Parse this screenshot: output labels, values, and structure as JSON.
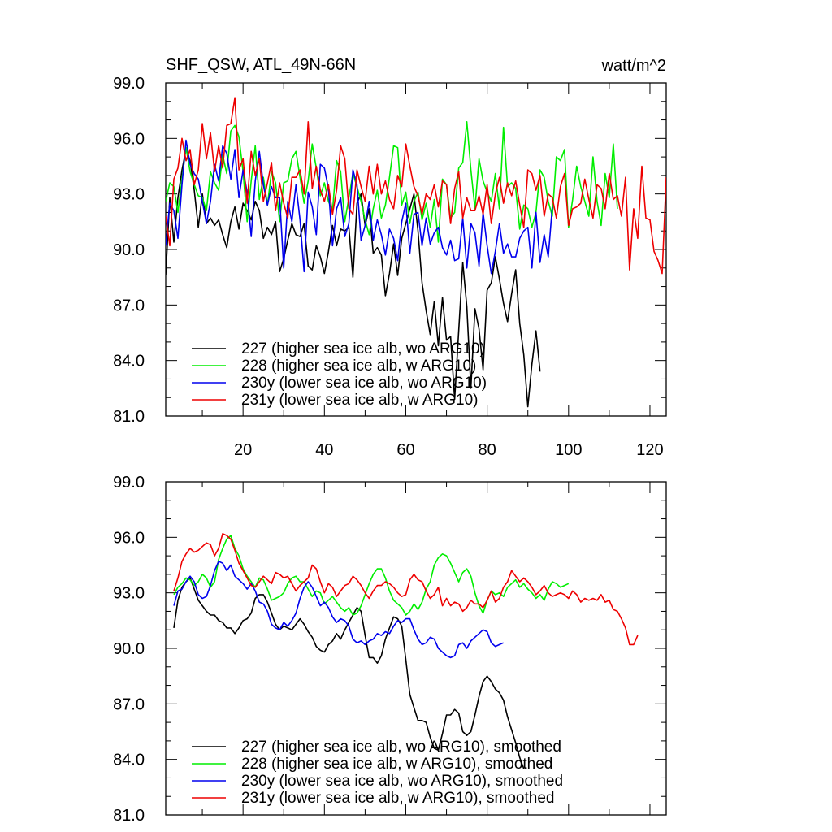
{
  "figure": {
    "title_left": "SHF_QSW, ATL_49N-66N",
    "title_right": "watt/m^2"
  },
  "colors": {
    "227": "#000000",
    "228": "#00ee00",
    "230y": "#0000ee",
    "231y": "#ee0000"
  },
  "chart_data": [
    {
      "type": "line",
      "title": "SHF_QSW, ATL_49N-66N",
      "units": "watt/m^2",
      "xlim": [
        1,
        124
      ],
      "ylim": [
        81.0,
        99.0
      ],
      "xticks": [
        20,
        40,
        60,
        80,
        100,
        120
      ],
      "yticks": [
        "81.0",
        "84.0",
        "87.0",
        "90.0",
        "93.0",
        "96.0",
        "99.0"
      ],
      "legend_position": "bottom-left",
      "series": [
        {
          "name": "227 (higher sea ice alb, wo ARG10)",
          "key": "227",
          "values": [
            88.6,
            92.8,
            90.4,
            92.8,
            94.3,
            95.4,
            94.8,
            93.2,
            91.2,
            93.0,
            91.4,
            91.7,
            91.3,
            91.6,
            90.8,
            90.1,
            91.5,
            92.3,
            91.1,
            92.5,
            92.1,
            91.6,
            92.6,
            92.1,
            90.6,
            91.2,
            90.8,
            91.5,
            88.8,
            89.5,
            90.5,
            91.4,
            90.8,
            90.7,
            91.4,
            89.1,
            88.9,
            90.2,
            89.6,
            88.7,
            89.9,
            91.3,
            90.2,
            91.1,
            91.0,
            91.2,
            88.5,
            92.5,
            93.0,
            91.3,
            92.2,
            89.8,
            90.1,
            89.7,
            87.5,
            88.7,
            90.3,
            88.6,
            90.6,
            91.4,
            92.2,
            93.0,
            91.0,
            88.2,
            86.7,
            85.4,
            87.2,
            84.8,
            87.4,
            85.1,
            85.3,
            81.9,
            85.6,
            89.3,
            86.9,
            82.5,
            86.8,
            85.7,
            83.5,
            87.8,
            88.2,
            89.6,
            88.4,
            87.1,
            86.1,
            87.6,
            88.9,
            86.0,
            84.3,
            81.5,
            83.8,
            85.6,
            83.4
          ],
          "x_start": 1
        },
        {
          "name": "228 (higher sea ice alb, w ARG10)",
          "key": "228",
          "values": [
            92.6,
            93.6,
            93.4,
            92.0,
            93.8,
            95.5,
            94.2,
            93.5,
            92.9,
            92.8,
            92.1,
            94.2,
            93.6,
            93.2,
            95.1,
            94.1,
            96.4,
            96.7,
            96.1,
            94.2,
            91.5,
            93.7,
            95.6,
            92.7,
            93.9,
            92.4,
            94.2,
            93.6,
            91.5,
            93.6,
            93.7,
            94.9,
            95.3,
            93.9,
            92.5,
            93.7,
            95.7,
            94.4,
            92.9,
            93.6,
            92.6,
            92.1,
            94.8,
            94.2,
            91.5,
            92.8,
            94.1,
            93.4,
            92.6,
            91.6,
            90.8,
            92.2,
            93.2,
            91.7,
            92.4,
            93.9,
            95.6,
            95.5,
            92.4,
            93.1,
            91.4,
            92.6,
            93.1,
            91.6,
            92.5,
            91.2,
            92.7,
            90.4,
            93.8,
            93.5,
            91.7,
            92.0,
            94.4,
            94.7,
            96.9,
            94.3,
            92.2,
            94.9,
            93.7,
            93.1,
            92.6,
            94.1,
            92.2,
            96.6,
            93.4,
            93.6,
            93.3,
            91.1,
            92.4,
            92.2,
            91.2,
            92.0,
            94.3,
            93.9,
            92.6,
            91.8,
            95.0,
            94.8,
            95.4,
            91.2,
            92.7,
            94.5,
            93.4,
            92.6,
            91.8,
            95.0,
            92.6,
            91.3,
            94.1,
            92.8,
            95.7,
            92.2
          ],
          "x_start": 1
        },
        {
          "name": "230y (lower sea ice alb, wo ARG10)",
          "key": "230y",
          "values": [
            90.2,
            92.5,
            92.1,
            90.6,
            93.5,
            95.9,
            94.6,
            94.1,
            93.8,
            92.6,
            91.4,
            92.6,
            94.6,
            93.7,
            95.6,
            95.2,
            93.8,
            95.4,
            92.8,
            94.3,
            93.1,
            90.7,
            93.7,
            95.3,
            93.5,
            92.4,
            93.4,
            92.8,
            92.8,
            89.0,
            92.6,
            91.5,
            93.5,
            91.6,
            88.8,
            93.1,
            92.3,
            90.8,
            94.6,
            94.4,
            93.3,
            90.2,
            92.2,
            92.8,
            90.7,
            91.4,
            94.3,
            93.5,
            90.5,
            91.3,
            92.6,
            90.5,
            91.6,
            90.8,
            89.7,
            91.1,
            90.6,
            89.4,
            91.5,
            92.5,
            89.8,
            91.9,
            92.0,
            90.2,
            91.7,
            90.3,
            90.9,
            91.2,
            90.1,
            89.7,
            90.5,
            89.4,
            89.5,
            91.7,
            89.0,
            91.4,
            90.9,
            89.1,
            92.0,
            90.2,
            88.7,
            89.9,
            91.4,
            89.8,
            90.3,
            89.6,
            89.6,
            90.6,
            91.0,
            91.2,
            89.0,
            92.0,
            89.3,
            90.8,
            89.6,
            92.3
          ],
          "x_start": 1
        },
        {
          "name": "231y (lower sea ice alb, w ARG10)",
          "key": "231y",
          "values": [
            91.8,
            90.2,
            93.8,
            94.4,
            96.0,
            94.8,
            95.4,
            93.5,
            94.3,
            96.8,
            94.9,
            96.3,
            94.2,
            95.6,
            94.4,
            96.7,
            96.8,
            98.2,
            94.3,
            94.9,
            92.5,
            95.3,
            94.0,
            94.9,
            92.6,
            93.6,
            94.7,
            92.1,
            93.6,
            92.5,
            91.7,
            93.9,
            93.9,
            94.3,
            93.0,
            96.9,
            93.3,
            94.5,
            93.2,
            92.6,
            93.5,
            91.9,
            93.2,
            95.6,
            94.9,
            92.2,
            91.9,
            94.3,
            93.4,
            92.6,
            94.5,
            93.0,
            94.6,
            93.0,
            93.7,
            92.7,
            92.2,
            94.0,
            93.4,
            95.7,
            94.5,
            93.4,
            92.9,
            91.9,
            93.0,
            92.7,
            93.5,
            92.3,
            93.7,
            93.5,
            91.4,
            93.3,
            94.2,
            91.7,
            92.8,
            92.1,
            92.1,
            92.9,
            91.9,
            93.5,
            91.4,
            93.0,
            93.9,
            92.5,
            93.6,
            92.9,
            93.7,
            92.4,
            91.2,
            94.3,
            94.1,
            93.2,
            94.0,
            91.8,
            93.0,
            92.8,
            91.7,
            93.4,
            94.1,
            91.3,
            92.2,
            92.3,
            92.5,
            93.8,
            92.7,
            91.7,
            93.5,
            93.3,
            92.2,
            94.1,
            92.7,
            92.9,
            91.8,
            93.9,
            88.9,
            92.2,
            90.6,
            94.5,
            91.7,
            91.6,
            89.9,
            89.4,
            88.7,
            93.9
          ],
          "x_start": 1
        }
      ]
    },
    {
      "type": "line",
      "title": "",
      "xlim": [
        1,
        124
      ],
      "ylim": [
        81.0,
        99.0
      ],
      "yticks": [
        "81.0",
        "84.0",
        "87.0",
        "90.0",
        "93.0",
        "96.0",
        "99.0"
      ],
      "legend_position": "bottom-left",
      "series": [
        {
          "name": "227 (higher sea ice alb, wo ARG10), smoothed",
          "key": "227",
          "values": [
            91.1,
            92.6,
            93.3,
            93.6,
            93.8,
            93.2,
            92.6,
            92.3,
            92.0,
            91.8,
            91.8,
            91.5,
            91.4,
            91.1,
            91.1,
            90.8,
            91.1,
            91.5,
            91.6,
            91.9,
            92.7,
            92.9,
            92.9,
            92.5,
            91.9,
            91.3,
            91.0,
            91.2,
            91.1,
            91.0,
            91.3,
            91.6,
            91.3,
            90.9,
            90.6,
            90.1,
            89.9,
            89.8,
            90.2,
            90.4,
            90.8,
            90.5,
            91.0,
            91.4,
            91.8,
            92.2,
            92.0,
            90.7,
            89.5,
            89.5,
            89.2,
            89.6,
            90.5,
            91.1,
            91.7,
            91.6,
            91.2,
            89.4,
            87.5,
            86.8,
            86.1,
            86.1,
            86.0,
            85.2,
            84.6,
            84.5,
            85.4,
            86.4,
            86.4,
            86.7,
            86.5,
            85.5,
            85.3,
            85.5,
            86.4,
            87.4,
            88.2,
            88.5,
            88.2,
            87.8,
            87.6,
            87.2,
            86.3,
            85.6,
            84.9,
            84.1,
            83.5
          ],
          "x_start": 3
        },
        {
          "name": "228 (higher sea ice alb, w ARG10), smoothed",
          "key": "228",
          "values": [
            92.9,
            93.3,
            93.5,
            93.8,
            93.7,
            93.4,
            93.6,
            94.0,
            93.8,
            93.3,
            93.6,
            94.8,
            95.4,
            95.9,
            96.1,
            95.4,
            95.0,
            94.3,
            93.9,
            93.6,
            93.3,
            93.8,
            93.7,
            93.2,
            92.6,
            92.7,
            92.8,
            93.0,
            93.5,
            93.8,
            93.9,
            93.6,
            93.6,
            93.2,
            92.8,
            93.1,
            93.0,
            92.4,
            92.6,
            92.8,
            92.5,
            92.2,
            92.0,
            92.2,
            91.8,
            91.9,
            92.3,
            92.9,
            93.5,
            94.0,
            94.3,
            94.3,
            93.8,
            93.1,
            92.6,
            92.4,
            92.2,
            91.8,
            92.0,
            92.4,
            92.1,
            92.5,
            93.2,
            93.6,
            94.5,
            94.9,
            95.1,
            95.0,
            94.6,
            94.1,
            93.6,
            94.1,
            94.3,
            93.9,
            93.0,
            92.3,
            91.9,
            92.6,
            93.1,
            92.9,
            93.0,
            92.8,
            93.3,
            93.5,
            93.7,
            93.3,
            93.5,
            93.2,
            93.0,
            92.7,
            92.9,
            92.6,
            93.2,
            93.6,
            93.5,
            93.3,
            93.4,
            93.5
          ],
          "x_start": 3
        },
        {
          "name": "230y (lower sea ice alb, wo ARG10), smoothed",
          "key": "230y",
          "values": [
            92.3,
            93.1,
            93.2,
            93.6,
            93.9,
            93.6,
            92.9,
            92.7,
            92.8,
            93.4,
            94.2,
            94.7,
            94.6,
            94.2,
            94.5,
            93.9,
            93.7,
            93.5,
            93.2,
            93.5,
            93.1,
            92.5,
            92.4,
            92.0,
            91.3,
            91.1,
            91.0,
            91.4,
            91.2,
            91.5,
            91.9,
            92.7,
            93.3,
            93.6,
            93.3,
            92.8,
            92.3,
            92.5,
            92.2,
            91.7,
            91.4,
            91.6,
            91.5,
            91.2,
            90.5,
            90.3,
            90.4,
            90.2,
            90.4,
            90.5,
            90.8,
            90.7,
            90.9,
            90.8,
            91.2,
            91.5,
            91.4,
            91.6,
            91.6,
            91.0,
            90.5,
            90.2,
            90.3,
            90.6,
            90.5,
            90.0,
            89.8,
            89.6,
            89.5,
            89.6,
            90.2,
            90.3,
            90.0,
            90.4,
            90.6,
            90.8,
            91.0,
            90.9,
            90.3,
            90.1,
            90.2,
            90.3
          ],
          "x_start": 3
        },
        {
          "name": "231y (lower sea ice alb, w ARG10), smoothed",
          "key": "231y",
          "values": [
            93.1,
            93.8,
            94.7,
            95.1,
            95.4,
            95.2,
            95.3,
            95.5,
            95.7,
            95.6,
            95.0,
            95.4,
            96.2,
            96.1,
            95.9,
            95.3,
            94.6,
            94.2,
            93.8,
            93.4,
            93.3,
            93.6,
            93.9,
            93.7,
            93.5,
            94.1,
            94.0,
            93.8,
            93.9,
            93.5,
            93.1,
            93.4,
            93.6,
            93.8,
            94.5,
            94.3,
            93.6,
            93.0,
            93.5,
            93.3,
            92.8,
            93.1,
            93.4,
            93.5,
            93.9,
            93.7,
            93.4,
            93.0,
            92.7,
            93.1,
            93.4,
            93.4,
            93.6,
            93.5,
            93.3,
            93.0,
            92.8,
            92.9,
            93.7,
            94.0,
            93.7,
            93.6,
            93.1,
            92.7,
            92.9,
            93.3,
            92.3,
            92.7,
            92.3,
            92.5,
            92.4,
            92.0,
            92.2,
            92.6,
            92.4,
            92.4,
            92.2,
            92.6,
            93.1,
            92.5,
            92.7,
            93.3,
            93.6,
            94.2,
            93.9,
            93.6,
            93.8,
            93.6,
            93.3,
            92.9,
            93.1,
            93.4,
            93.0,
            92.8,
            92.9,
            93.0,
            92.9,
            92.7,
            93.1,
            92.9,
            92.5,
            92.7,
            92.6,
            92.7,
            92.6,
            92.9,
            92.5,
            92.6,
            92.1,
            92.0,
            91.6,
            91.1,
            90.2,
            90.2,
            90.7
          ],
          "x_start": 3
        }
      ]
    }
  ]
}
